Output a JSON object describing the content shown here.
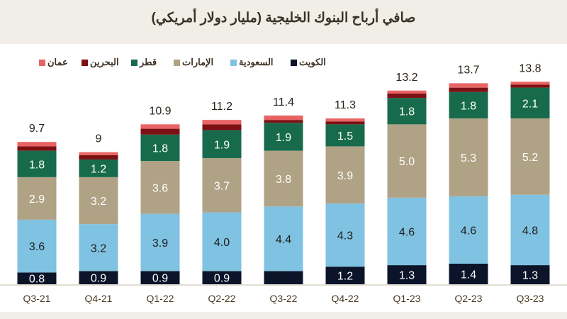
{
  "chart_data": {
    "type": "bar",
    "stacked": true,
    "title": "صافي أرباح البنوك الخليجية (مليار دولار أمريكي)",
    "categories": [
      "Q3-21",
      "Q4-21",
      "Q1-22",
      "Q2-22",
      "Q3-22",
      "Q4-22",
      "Q1-23",
      "Q2-23",
      "Q3-23"
    ],
    "totals": [
      9.7,
      9.0,
      10.9,
      11.2,
      11.4,
      11.3,
      13.2,
      13.7,
      13.8
    ],
    "series": [
      {
        "name": "الكويت",
        "color": "#0b1428",
        "label_color": "#ffffff",
        "values": [
          0.8,
          0.9,
          0.9,
          0.9,
          0.9,
          1.2,
          1.3,
          1.4,
          1.3
        ],
        "labels": [
          "0.8",
          "0.9",
          "0.9",
          "0.9",
          "",
          "1.2",
          "1.3",
          "1.4",
          "1.3"
        ]
      },
      {
        "name": "السعودية",
        "color": "#80c2e2",
        "label_color": "#1e1e1e",
        "values": [
          3.6,
          3.2,
          3.9,
          4.0,
          4.4,
          4.3,
          4.6,
          4.6,
          4.8
        ],
        "labels": [
          "3.6",
          "3.2",
          "3.9",
          "4.0",
          "4.4",
          "4.3",
          "4.6",
          "4.6",
          "4.8"
        ]
      },
      {
        "name": "الإمارات",
        "color": "#b0a285",
        "label_color": "#ffffff",
        "values": [
          2.9,
          3.2,
          3.6,
          3.7,
          3.8,
          3.9,
          5.0,
          5.3,
          5.2
        ],
        "labels": [
          "2.9",
          "3.2",
          "3.6",
          "3.7",
          "3.8",
          "3.9",
          "5.0",
          "5.3",
          "5.2"
        ]
      },
      {
        "name": "قطر",
        "color": "#176b4c",
        "label_color": "#ffffff",
        "values": [
          1.8,
          1.2,
          1.8,
          1.9,
          1.9,
          1.5,
          1.8,
          1.8,
          2.1
        ],
        "labels": [
          "1.8",
          "1.2",
          "1.8",
          "1.9",
          "1.9",
          "1.5",
          "1.8",
          "1.8",
          "2.1"
        ]
      },
      {
        "name": "البحرين",
        "color": "#7c1013",
        "label_color": "#ffffff",
        "values": [
          0.3,
          0.3,
          0.4,
          0.4,
          0.2,
          0.2,
          0.3,
          0.3,
          0.2
        ],
        "labels": [
          "",
          "",
          "",
          "",
          "",
          "",
          "",
          "",
          ""
        ]
      },
      {
        "name": "عمان",
        "color": "#e86464",
        "label_color": "#ffffff",
        "values": [
          0.3,
          0.2,
          0.3,
          0.3,
          0.3,
          0.2,
          0.2,
          0.3,
          0.2
        ],
        "labels": [
          "",
          "",
          "",
          "",
          "",
          "",
          "",
          "",
          ""
        ]
      }
    ],
    "ylim": [
      0,
      16
    ],
    "grid": false,
    "legend_position": "top-left"
  }
}
